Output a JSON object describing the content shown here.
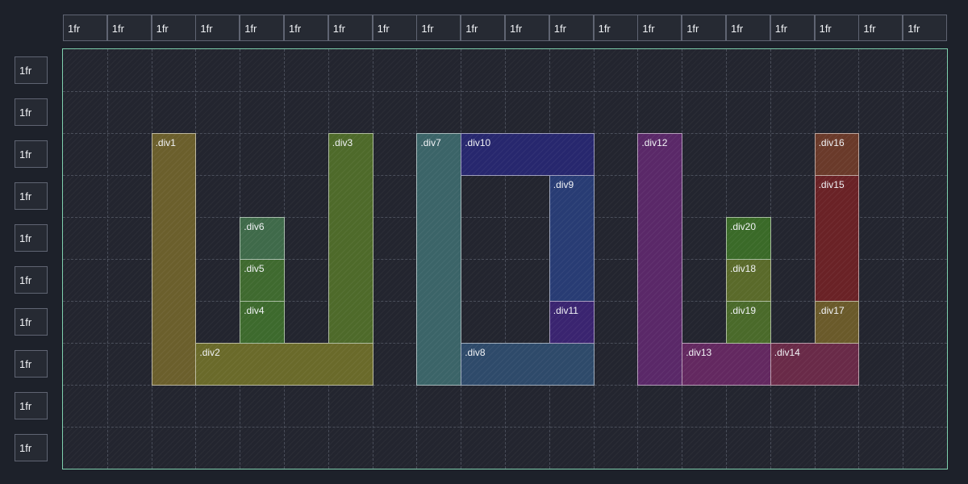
{
  "columns": [
    "1fr",
    "1fr",
    "1fr",
    "1fr",
    "1fr",
    "1fr",
    "1fr",
    "1fr",
    "1fr",
    "1fr",
    "1fr",
    "1fr",
    "1fr",
    "1fr",
    "1fr",
    "1fr",
    "1fr",
    "1fr",
    "1fr",
    "1fr"
  ],
  "rows": [
    "1fr",
    "1fr",
    "1fr",
    "1fr",
    "1fr",
    "1fr",
    "1fr",
    "1fr",
    "1fr",
    "1fr"
  ],
  "items": [
    {
      "label": ".div1",
      "col": 3,
      "row": 3,
      "colspan": 1,
      "rowspan": 6,
      "color": "#6b5f2c"
    },
    {
      "label": ".div2",
      "col": 4,
      "row": 8,
      "colspan": 4,
      "rowspan": 1,
      "color": "#6a6a2a"
    },
    {
      "label": ".div3",
      "col": 7,
      "row": 3,
      "colspan": 1,
      "rowspan": 5,
      "color": "#4e6a2a"
    },
    {
      "label": ".div4",
      "col": 5,
      "row": 7,
      "colspan": 1,
      "rowspan": 1,
      "color": "#3d6a2d"
    },
    {
      "label": ".div5",
      "col": 5,
      "row": 6,
      "colspan": 1,
      "rowspan": 1,
      "color": "#3f6a2f"
    },
    {
      "label": ".div6",
      "col": 5,
      "row": 5,
      "colspan": 1,
      "rowspan": 1,
      "color": "#3f6a4a"
    },
    {
      "label": ".div7",
      "col": 9,
      "row": 3,
      "colspan": 1,
      "rowspan": 6,
      "color": "#3b6468"
    },
    {
      "label": ".div8",
      "col": 10,
      "row": 8,
      "colspan": 3,
      "rowspan": 1,
      "color": "#2e4a6a"
    },
    {
      "label": ".div9",
      "col": 12,
      "row": 4,
      "colspan": 1,
      "rowspan": 3,
      "color": "#283c74"
    },
    {
      "label": ".div10",
      "col": 10,
      "row": 3,
      "colspan": 3,
      "rowspan": 1,
      "color": "#27276e"
    },
    {
      "label": ".div11",
      "col": 12,
      "row": 7,
      "colspan": 1,
      "rowspan": 1,
      "color": "#3a2470"
    },
    {
      "label": ".div12",
      "col": 14,
      "row": 3,
      "colspan": 1,
      "rowspan": 6,
      "color": "#5a2868"
    },
    {
      "label": ".div13",
      "col": 15,
      "row": 8,
      "colspan": 2,
      "rowspan": 1,
      "color": "#632860"
    },
    {
      "label": ".div14",
      "col": 17,
      "row": 8,
      "colspan": 2,
      "rowspan": 1,
      "color": "#692a48"
    },
    {
      "label": ".div15",
      "col": 18,
      "row": 4,
      "colspan": 1,
      "rowspan": 3,
      "color": "#6a2226"
    },
    {
      "label": ".div16",
      "col": 18,
      "row": 3,
      "colspan": 1,
      "rowspan": 1,
      "color": "#6a3a2a"
    },
    {
      "label": ".div17",
      "col": 18,
      "row": 7,
      "colspan": 1,
      "rowspan": 1,
      "color": "#6a5a2a"
    },
    {
      "label": ".div18",
      "col": 16,
      "row": 6,
      "colspan": 1,
      "rowspan": 1,
      "color": "#5a6a2a"
    },
    {
      "label": ".div19",
      "col": 16,
      "row": 7,
      "colspan": 1,
      "rowspan": 1,
      "color": "#4a6a2a"
    },
    {
      "label": ".div20",
      "col": 16,
      "row": 5,
      "colspan": 1,
      "rowspan": 1,
      "color": "#3a6a28"
    }
  ]
}
